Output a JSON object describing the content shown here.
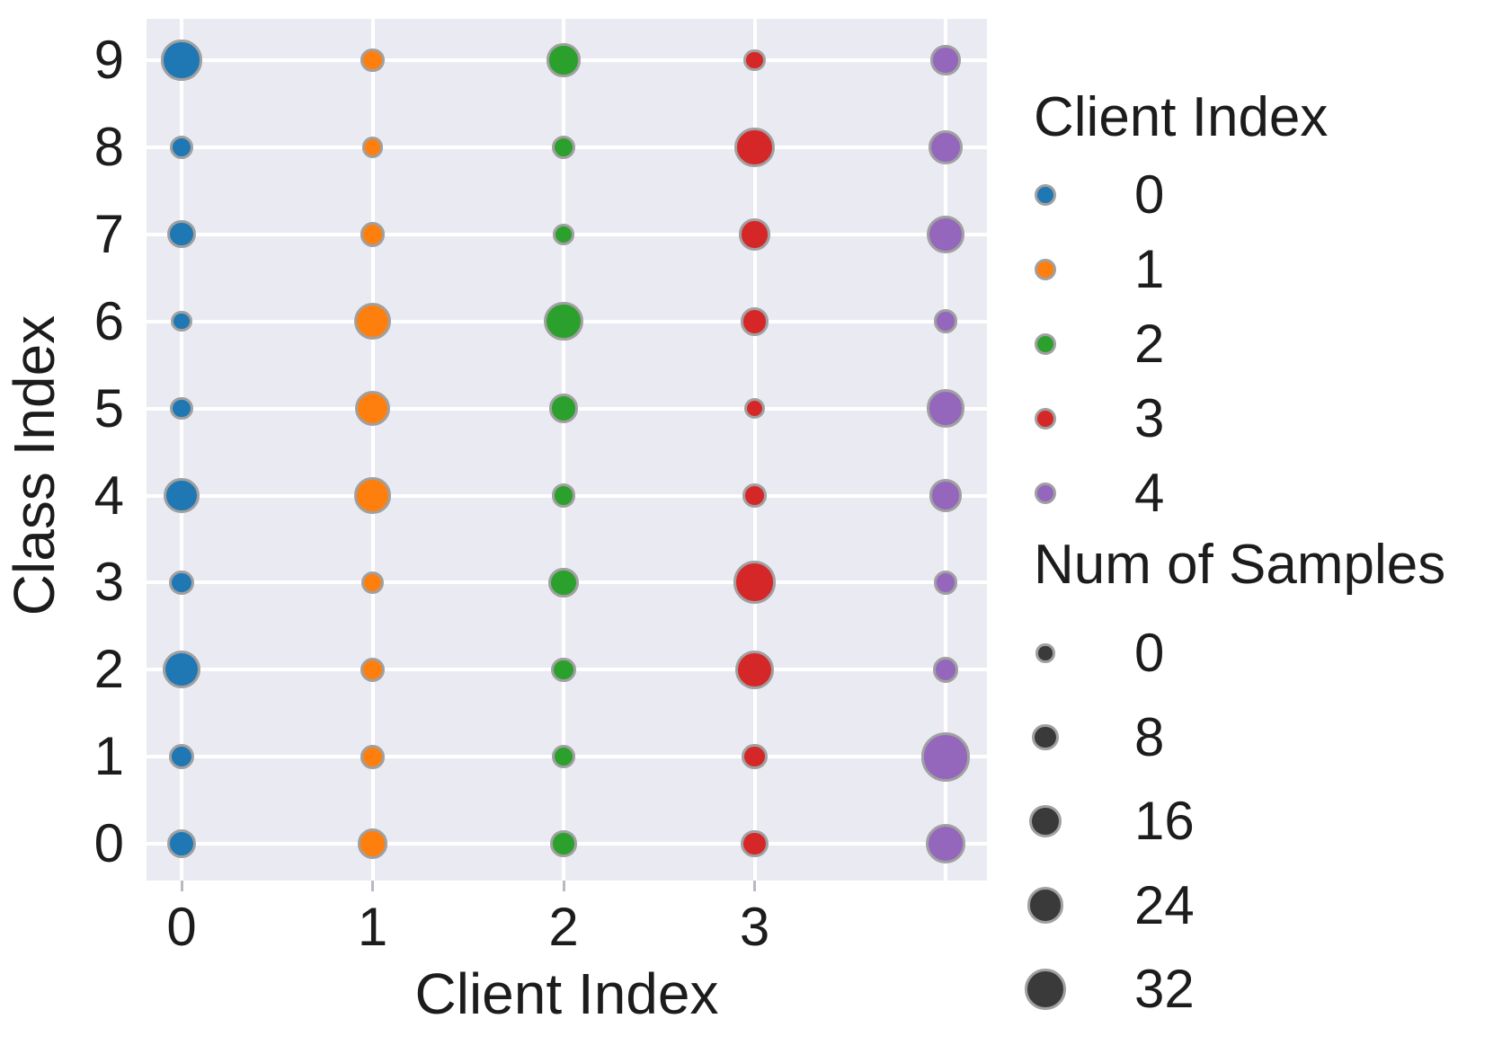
{
  "figure": {
    "background": "#ffffff",
    "panel_background": "#eaeaf2",
    "grid_color": "#ffffff",
    "bubble_edge_color": "#a0a0a0",
    "text_color": "#1c1c1c"
  },
  "chart_data": {
    "type": "scatter",
    "title": "",
    "xlabel": "Client Index",
    "ylabel": "Class Index",
    "x_tick_labels": [
      "0",
      "1",
      "2",
      "3"
    ],
    "y_tick_labels": [
      "9",
      "8",
      "7",
      "6",
      "5",
      "4",
      "3",
      "2",
      "1",
      "0"
    ],
    "x_range": [
      0,
      4
    ],
    "y_range": [
      0,
      9
    ],
    "grid": true,
    "legend_position": "right",
    "size_encoding": {
      "label": "Num of Samples",
      "legend_values": [
        0,
        8,
        16,
        24,
        32
      ]
    },
    "classes": [
      0,
      1,
      2,
      3,
      4,
      5,
      6,
      7,
      8,
      9
    ],
    "series": [
      {
        "name": "0",
        "client_index": 0,
        "color": "#1f77b4",
        "samples_per_class": [
          12,
          7,
          26,
          6,
          21,
          4,
          2,
          10,
          5,
          31
        ]
      },
      {
        "name": "1",
        "client_index": 1,
        "color": "#ff7f0e",
        "samples_per_class": [
          13,
          5,
          6,
          4,
          23,
          22,
          24,
          6,
          2,
          5
        ]
      },
      {
        "name": "2",
        "client_index": 2,
        "color": "#2ca02c",
        "samples_per_class": [
          8,
          4,
          6,
          13,
          5,
          12,
          28,
          2,
          5,
          18
        ]
      },
      {
        "name": "3",
        "client_index": 3,
        "color": "#d62728",
        "samples_per_class": [
          9,
          7,
          27,
          36,
          5,
          2,
          11,
          16,
          30,
          3
        ]
      },
      {
        "name": "4",
        "client_index": 4,
        "color": "#9467bd",
        "samples_per_class": [
          30,
          50,
          7,
          5,
          17,
          26,
          5,
          26,
          20,
          13
        ]
      }
    ]
  },
  "legend_client": {
    "title": "Client Index",
    "items": [
      {
        "label": "0",
        "color": "#1f77b4"
      },
      {
        "label": "1",
        "color": "#ff7f0e"
      },
      {
        "label": "2",
        "color": "#2ca02c"
      },
      {
        "label": "3",
        "color": "#d62728"
      },
      {
        "label": "4",
        "color": "#9467bd"
      }
    ]
  },
  "legend_size": {
    "title": "Num of Samples",
    "dot_color": "#3a3a3a",
    "items": [
      {
        "label": "0",
        "value": 0
      },
      {
        "label": "8",
        "value": 8
      },
      {
        "label": "16",
        "value": 16
      },
      {
        "label": "24",
        "value": 24
      },
      {
        "label": "32",
        "value": 32
      }
    ]
  }
}
